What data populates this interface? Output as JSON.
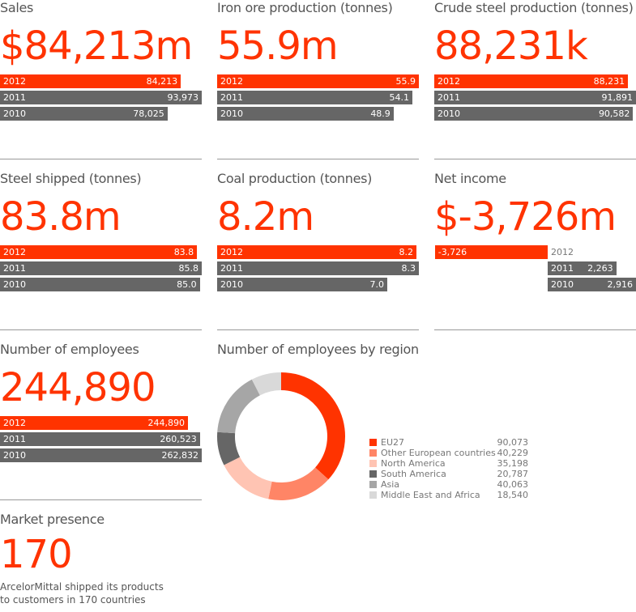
{
  "colors": {
    "accent": "#ff3300",
    "gray": "#666666"
  },
  "chart_data": [
    {
      "type": "bar",
      "title": "Sales",
      "headline": "$84,213m",
      "categories": [
        "2012",
        "2011",
        "2010"
      ],
      "values": [
        84213,
        93973,
        78025
      ],
      "labels": [
        "84,213",
        "93,973",
        "78,025"
      ]
    },
    {
      "type": "bar",
      "title": "Iron ore production (tonnes)",
      "headline": "55.9m",
      "categories": [
        "2012",
        "2011",
        "2010"
      ],
      "values": [
        55.9,
        54.1,
        48.9
      ],
      "labels": [
        "55.9",
        "54.1",
        "48.9"
      ]
    },
    {
      "type": "bar",
      "title": "Crude steel production (tonnes)",
      "headline": "88,231k",
      "categories": [
        "2012",
        "2011",
        "2010"
      ],
      "values": [
        88231,
        91891,
        90582
      ],
      "labels": [
        "88,231",
        "91,891",
        "90,582"
      ]
    },
    {
      "type": "bar",
      "title": "Steel shipped (tonnes)",
      "headline": "83.8m",
      "categories": [
        "2012",
        "2011",
        "2010"
      ],
      "values": [
        83.8,
        85.8,
        85.0
      ],
      "labels": [
        "83.8",
        "85.8",
        "85.0"
      ]
    },
    {
      "type": "bar",
      "title": "Coal production (tonnes)",
      "headline": "8.2m",
      "categories": [
        "2012",
        "2011",
        "2010"
      ],
      "values": [
        8.2,
        8.3,
        7.0
      ],
      "labels": [
        "8.2",
        "8.3",
        "7.0"
      ]
    },
    {
      "type": "bar",
      "title": "Net income",
      "headline": "$-3,726m",
      "categories": [
        "2012",
        "2011",
        "2010"
      ],
      "values": [
        -3726,
        2263,
        2916
      ],
      "labels": [
        "-3,726",
        "2,263",
        "2,916"
      ]
    },
    {
      "type": "bar",
      "title": "Number of employees",
      "headline": "244,890",
      "categories": [
        "2012",
        "2011",
        "2010"
      ],
      "values": [
        244890,
        260523,
        262832
      ],
      "labels": [
        "244,890",
        "260,523",
        "262,832"
      ]
    },
    {
      "type": "pie",
      "title": "Number of employees by region",
      "categories": [
        "EU27",
        "Other European countries",
        "North America",
        "South America",
        "Asia",
        "Middle East and Africa"
      ],
      "values": [
        90073,
        40229,
        35198,
        20787,
        40063,
        18540
      ],
      "labels": [
        "90,073",
        "40,229",
        "35,198",
        "20,787",
        "40,063",
        "18,540"
      ],
      "colors": [
        "#ff3300",
        "#ff8566",
        "#ffc4b3",
        "#666666",
        "#a6a6a6",
        "#d9d9d9"
      ]
    }
  ],
  "market": {
    "title": "Market presence",
    "headline": "170",
    "note1": "ArcelorMittal shipped its products",
    "note2": "to customers in 170 countries"
  }
}
